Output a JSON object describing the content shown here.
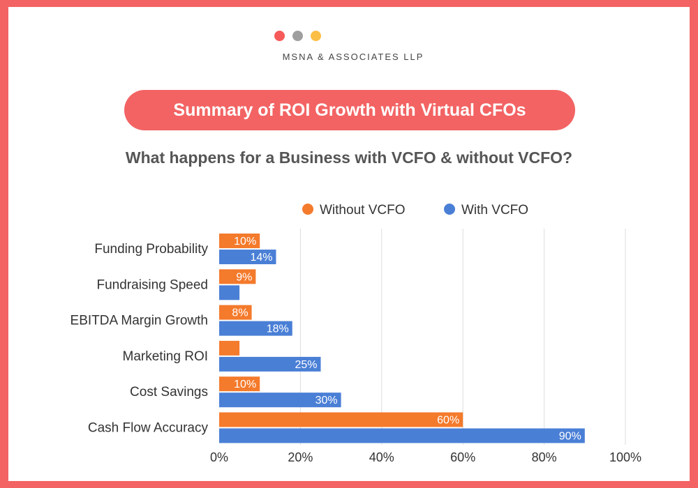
{
  "colors": {
    "frame": "#f36363",
    "dot_red": "#f65a5a",
    "dot_grey": "#9e9e9e",
    "dot_yellow": "#fbbf47",
    "without": "#f47a2c",
    "with": "#4a7fd6",
    "grid": "#dddddd",
    "text": "#333333"
  },
  "brand": "MSNA & ASSOCIATES LLP",
  "header": {
    "title": "Summary of ROI Growth with Virtual CFOs",
    "subtitle": "What happens for a Business with VCFO & without VCFO?"
  },
  "chart_data": {
    "type": "bar",
    "orientation": "horizontal",
    "categories": [
      "Funding Probability",
      "Fundraising Speed",
      "EBITDA Margin Growth",
      "Marketing ROI",
      "Cost Savings",
      "Cash Flow Accuracy"
    ],
    "series": [
      {
        "name": "Without VCFO",
        "values": [
          10,
          9,
          8,
          5,
          10,
          60
        ],
        "labels": [
          "10%",
          "9%",
          "8%",
          "",
          "10%",
          "60%"
        ]
      },
      {
        "name": "With VCFO",
        "values": [
          14,
          5,
          18,
          25,
          30,
          90
        ],
        "labels": [
          "14%",
          "",
          "18%",
          "25%",
          "30%",
          "90%"
        ]
      }
    ],
    "xlim": [
      0,
      100
    ],
    "ticks": [
      0,
      20,
      40,
      60,
      80,
      100
    ],
    "tick_labels": [
      "0%",
      "20%",
      "40%",
      "60%",
      "80%",
      "100%"
    ],
    "grid": true,
    "legend": "top-center"
  }
}
